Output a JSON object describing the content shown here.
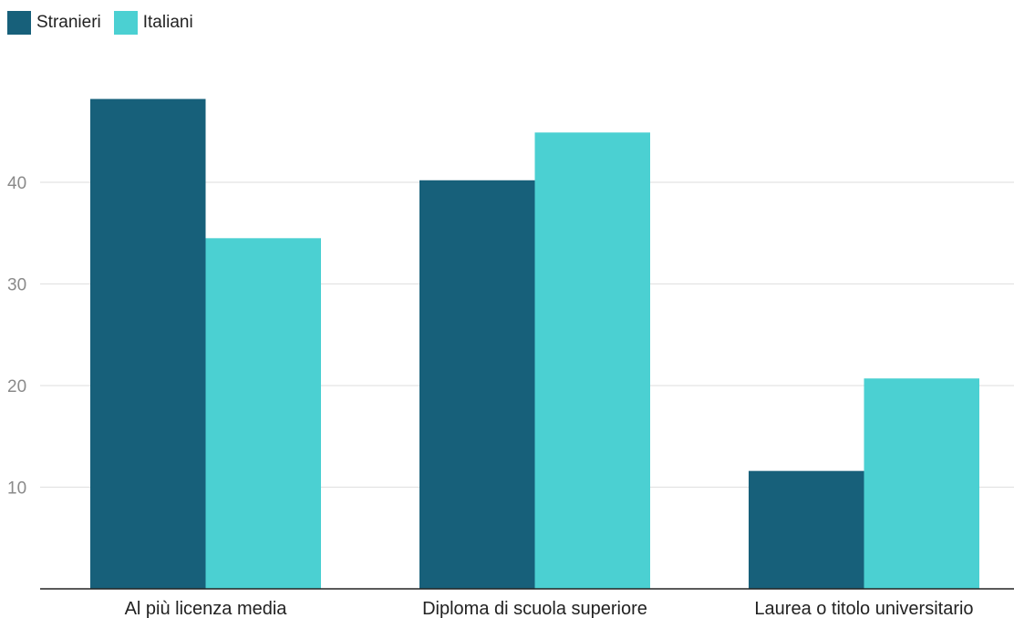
{
  "chart_data": {
    "type": "bar",
    "categories": [
      "Al più licenza media",
      "Diploma di scuola superiore",
      "Laurea o titolo universitario"
    ],
    "series": [
      {
        "name": "Stranieri",
        "values": [
          48.2,
          40.2,
          11.6
        ],
        "color": "#17607a"
      },
      {
        "name": "Italiani",
        "values": [
          34.5,
          44.9,
          20.7
        ],
        "color": "#4bd0d2"
      }
    ],
    "yticks": [
      10,
      20,
      30,
      40
    ],
    "ylim": [
      0,
      52
    ],
    "grid": true,
    "legend": "top-left",
    "title": "",
    "xlabel": "",
    "ylabel": ""
  }
}
